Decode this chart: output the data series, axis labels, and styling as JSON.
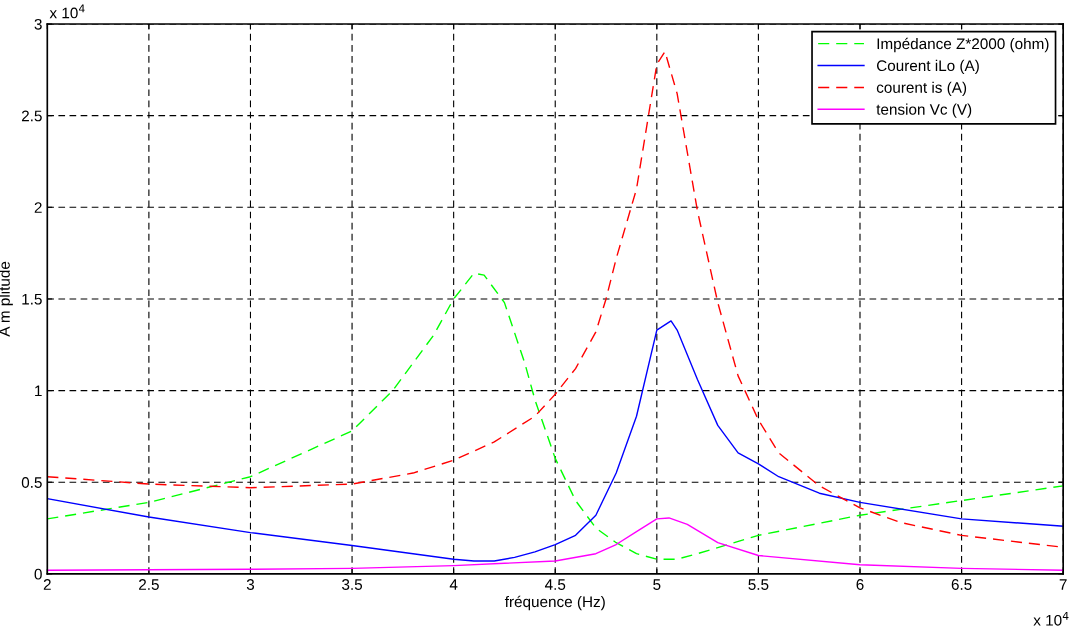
{
  "chart_data": {
    "type": "line",
    "xlabel": "fréquence (Hz)",
    "ylabel": "A m plitude",
    "annotations": [
      "x 10$^{4}$",
      "x 10$^{4}$"
    ],
    "xlim": [
      2,
      7
    ],
    "ylim": [
      0,
      3
    ],
    "xticks": [
      2,
      2.5,
      3,
      3.5,
      4,
      4.5,
      5,
      5.5,
      6,
      6.5,
      7
    ],
    "yticks": [
      0,
      0.5,
      1,
      1.5,
      2,
      2.5,
      3
    ],
    "grid": true,
    "legend": "top right",
    "marker": "none",
    "series": [
      {
        "name": "Impédance Z*2000 (ohm)",
        "color": "#00ff00",
        "line_style": "dashed",
        "x": [
          2,
          2.5,
          3,
          3.5,
          3.7,
          3.9,
          4.0,
          4.1,
          4.15,
          4.25,
          4.35,
          4.4,
          4.5,
          4.6,
          4.7,
          4.8,
          4.9,
          5.0,
          5.1,
          5.2,
          5.5,
          6,
          6.5,
          7
        ],
        "values": [
          0.3,
          0.39,
          0.53,
          0.78,
          1.0,
          1.3,
          1.5,
          1.64,
          1.63,
          1.48,
          1.15,
          0.95,
          0.63,
          0.4,
          0.25,
          0.17,
          0.11,
          0.08,
          0.08,
          0.11,
          0.21,
          0.32,
          0.4,
          0.48
        ]
      },
      {
        "name": "Courent iLo (A)",
        "color": "#0000ff",
        "line_style": "solid",
        "x": [
          2,
          2.5,
          3,
          3.5,
          4.0,
          4.1,
          4.2,
          4.3,
          4.4,
          4.5,
          4.6,
          4.7,
          4.8,
          4.9,
          5.0,
          5.07,
          5.1,
          5.2,
          5.3,
          5.4,
          5.5,
          5.6,
          5.8,
          6,
          6.5,
          7
        ],
        "values": [
          0.41,
          0.31,
          0.225,
          0.155,
          0.08,
          0.07,
          0.07,
          0.09,
          0.12,
          0.16,
          0.21,
          0.32,
          0.55,
          0.86,
          1.33,
          1.38,
          1.33,
          1.06,
          0.81,
          0.66,
          0.6,
          0.53,
          0.44,
          0.39,
          0.3,
          0.26
        ]
      },
      {
        "name": "courent is (A)",
        "color": "#ff0000",
        "line_style": "dashed",
        "x": [
          2,
          2.5,
          3,
          3.5,
          3.8,
          4.0,
          4.2,
          4.4,
          4.5,
          4.6,
          4.7,
          4.75,
          4.8,
          4.9,
          5.0,
          5.04,
          5.1,
          5.2,
          5.3,
          5.4,
          5.5,
          5.6,
          5.8,
          6,
          6.2,
          6.5,
          7
        ],
        "values": [
          0.53,
          0.49,
          0.47,
          0.49,
          0.55,
          0.62,
          0.72,
          0.86,
          0.98,
          1.12,
          1.32,
          1.5,
          1.72,
          2.1,
          2.78,
          2.85,
          2.62,
          1.98,
          1.48,
          1.08,
          0.84,
          0.66,
          0.48,
          0.36,
          0.28,
          0.21,
          0.145
        ]
      },
      {
        "name": "tension Vc (V)",
        "color": "#ff00ff",
        "line_style": "solid",
        "x": [
          2,
          3,
          3.5,
          4.0,
          4.5,
          4.7,
          4.8,
          4.9,
          5.0,
          5.06,
          5.15,
          5.3,
          5.5,
          6,
          6.5,
          7
        ],
        "values": [
          0.02,
          0.025,
          0.03,
          0.045,
          0.07,
          0.11,
          0.16,
          0.23,
          0.3,
          0.305,
          0.27,
          0.17,
          0.1,
          0.05,
          0.03,
          0.02
        ]
      }
    ]
  }
}
